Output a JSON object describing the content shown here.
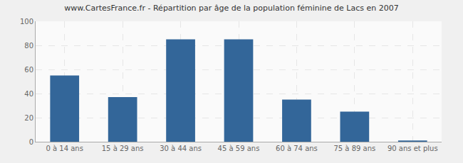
{
  "chart_data": {
    "type": "bar",
    "title": "www.CartesFrance.fr - Répartition par âge de la population féminine de Lacs en 2007",
    "categories": [
      "0 à 14 ans",
      "15 à 29 ans",
      "30 à 44 ans",
      "45 à 59 ans",
      "60 à 74 ans",
      "75 à 89 ans",
      "90 ans et plus"
    ],
    "values": [
      55,
      37,
      85,
      85,
      35,
      25,
      1
    ],
    "color": "#336699",
    "ylim": [
      0,
      100
    ],
    "yticks": [
      0,
      20,
      40,
      60,
      80,
      100
    ],
    "grid": true
  }
}
